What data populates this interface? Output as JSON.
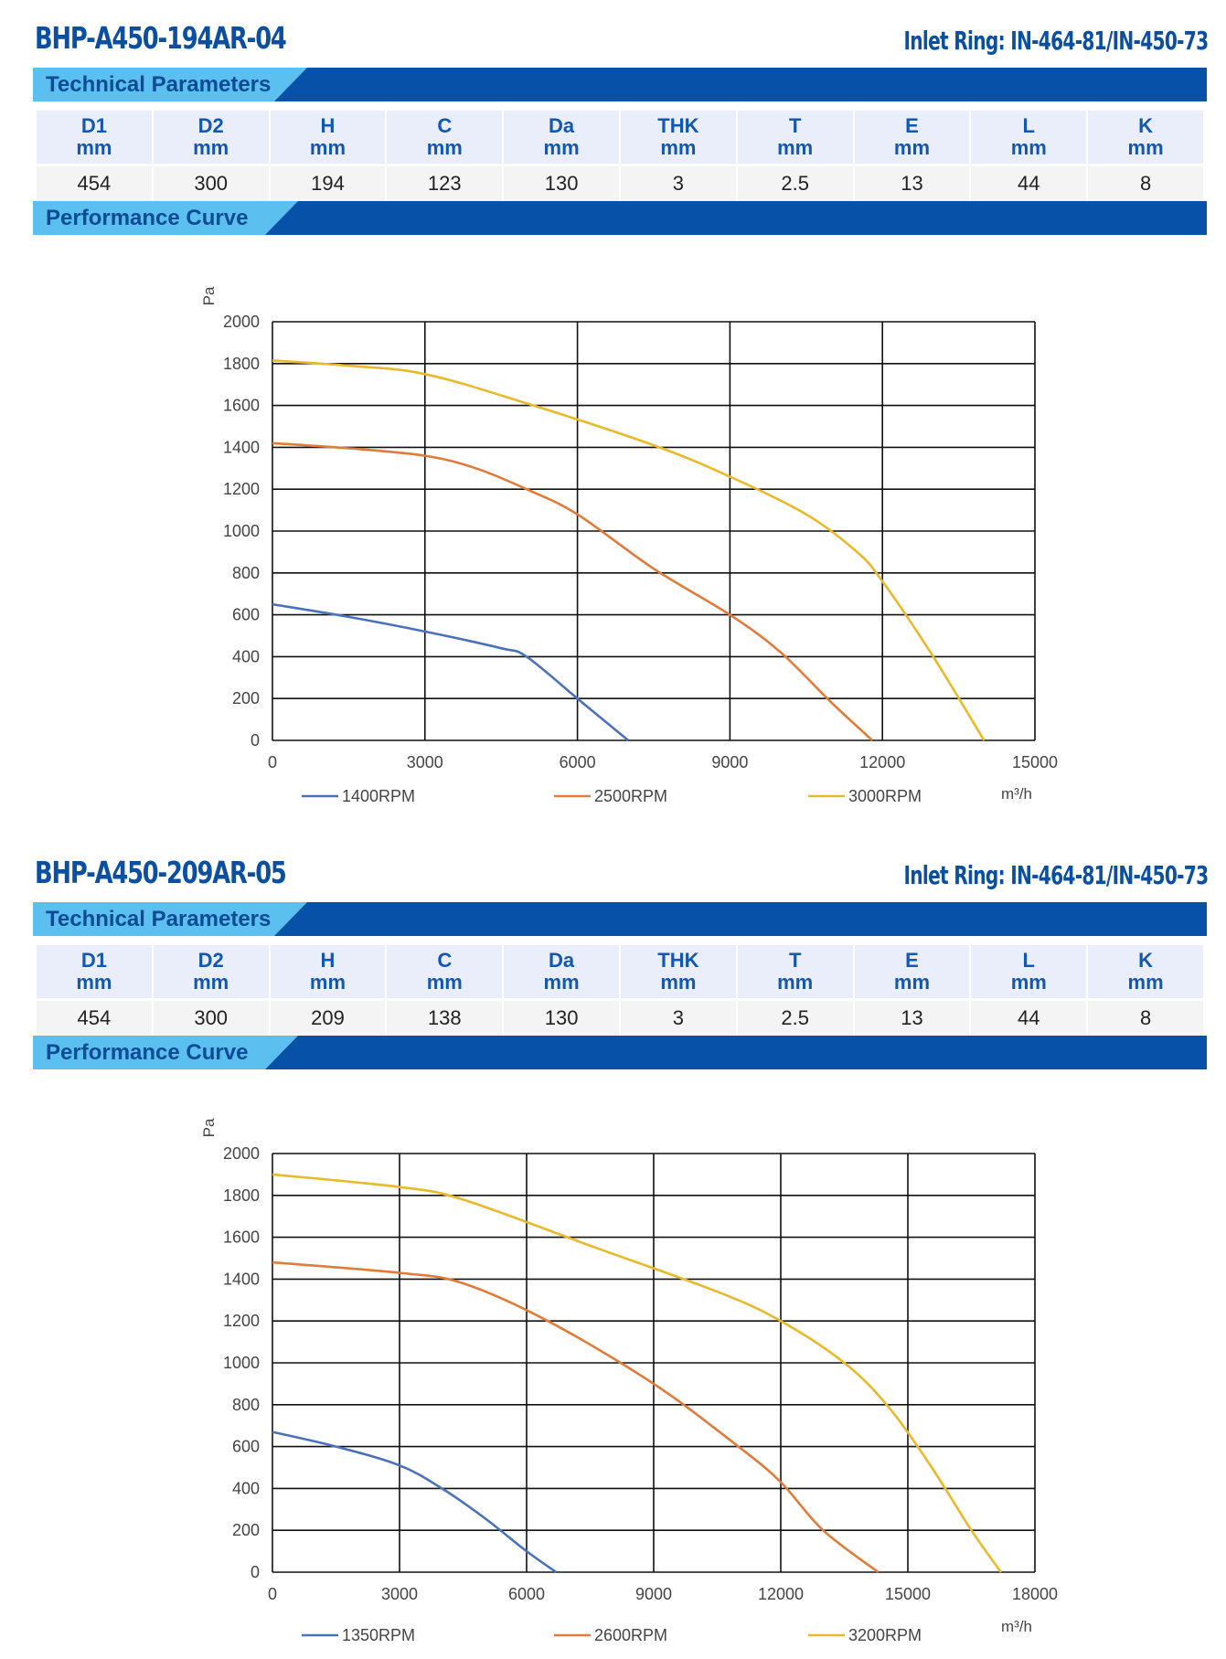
{
  "sections": [
    {
      "model": "BHP-A450-194AR-04",
      "inlet_ring": "Inlet Ring: IN-464-81/IN-450-73",
      "tech_label": "Technical Parameters",
      "perf_label": "Performance Curve",
      "params": {
        "headers": [
          [
            "D1",
            "mm"
          ],
          [
            "D2",
            "mm"
          ],
          [
            "H",
            "mm"
          ],
          [
            "C",
            "mm"
          ],
          [
            "Da",
            "mm"
          ],
          [
            "THK",
            "mm"
          ],
          [
            "T",
            "mm"
          ],
          [
            "E",
            "mm"
          ],
          [
            "L",
            "mm"
          ],
          [
            "K",
            "mm"
          ]
        ],
        "values": [
          "454",
          "300",
          "194",
          "123",
          "130",
          "3",
          "2.5",
          "13",
          "44",
          "8"
        ]
      }
    },
    {
      "model": "BHP-A450-209AR-05",
      "inlet_ring": "Inlet Ring: IN-464-81/IN-450-73",
      "tech_label": "Technical Parameters",
      "perf_label": "Performance Curve",
      "params": {
        "headers": [
          [
            "D1",
            "mm"
          ],
          [
            "D2",
            "mm"
          ],
          [
            "H",
            "mm"
          ],
          [
            "C",
            "mm"
          ],
          [
            "Da",
            "mm"
          ],
          [
            "THK",
            "mm"
          ],
          [
            "T",
            "mm"
          ],
          [
            "E",
            "mm"
          ],
          [
            "L",
            "mm"
          ],
          [
            "K",
            "mm"
          ]
        ],
        "values": [
          "454",
          "300",
          "209",
          "138",
          "130",
          "3",
          "2.5",
          "13",
          "44",
          "8"
        ]
      }
    }
  ],
  "chart_data": [
    {
      "type": "line",
      "ylabel": "Pa",
      "xlabel": "m³/h",
      "xlim": [
        0,
        15000
      ],
      "ylim": [
        0,
        2000
      ],
      "xticks": [
        0,
        3000,
        6000,
        9000,
        12000,
        15000
      ],
      "yticks": [
        0,
        200,
        400,
        600,
        800,
        1000,
        1200,
        1400,
        1600,
        1800,
        2000
      ],
      "grid": true,
      "legend": "bottom",
      "series": [
        {
          "name": "1400RPM",
          "color": "#4a72b8",
          "x": [
            0,
            1500,
            3000,
            4500,
            5000,
            6000,
            7000
          ],
          "y": [
            650,
            590,
            520,
            440,
            400,
            200,
            0
          ]
        },
        {
          "name": "2500RPM",
          "color": "#e07b39",
          "x": [
            0,
            1500,
            3000,
            4000,
            5000,
            6000,
            7500,
            9000,
            10000,
            11000,
            11800
          ],
          "y": [
            1420,
            1395,
            1360,
            1300,
            1200,
            1080,
            820,
            600,
            420,
            180,
            0
          ]
        },
        {
          "name": "3000RPM",
          "color": "#e8b92a",
          "x": [
            0,
            1500,
            3000,
            5000,
            7500,
            9000,
            10500,
            11500,
            12000,
            13000,
            14000
          ],
          "y": [
            1815,
            1790,
            1750,
            1610,
            1410,
            1260,
            1080,
            900,
            760,
            400,
            0
          ]
        }
      ]
    },
    {
      "type": "line",
      "ylabel": "Pa",
      "xlabel": "m³/h",
      "xlim": [
        0,
        18000
      ],
      "ylim": [
        0,
        2000
      ],
      "xticks": [
        0,
        3000,
        6000,
        9000,
        12000,
        15000,
        18000
      ],
      "yticks": [
        0,
        200,
        400,
        600,
        800,
        1000,
        1200,
        1400,
        1600,
        1800,
        2000
      ],
      "grid": true,
      "legend": "bottom",
      "series": [
        {
          "name": "1350RPM",
          "color": "#4a72b8",
          "x": [
            0,
            1500,
            3000,
            4000,
            5000,
            6000,
            6700
          ],
          "y": [
            670,
            600,
            510,
            400,
            260,
            100,
            0
          ]
        },
        {
          "name": "2600RPM",
          "color": "#e07b39",
          "x": [
            0,
            3000,
            4500,
            6500,
            9000,
            11000,
            12000,
            13000,
            14300
          ],
          "y": [
            1480,
            1430,
            1380,
            1200,
            900,
            600,
            430,
            200,
            0
          ]
        },
        {
          "name": "3200RPM",
          "color": "#e8b92a",
          "x": [
            0,
            3000,
            4500,
            7500,
            10500,
            12000,
            13500,
            14500,
            15500,
            16500,
            17200
          ],
          "y": [
            1900,
            1840,
            1780,
            1560,
            1340,
            1200,
            1000,
            800,
            520,
            200,
            0
          ]
        }
      ]
    }
  ]
}
